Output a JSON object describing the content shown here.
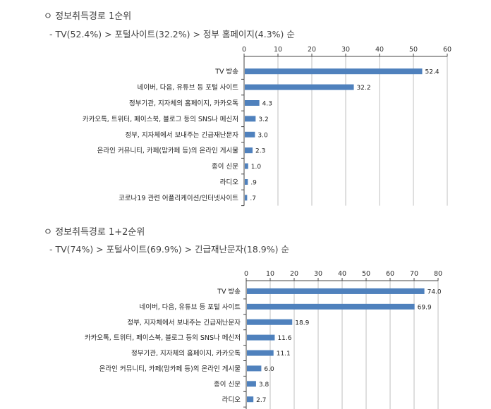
{
  "section1": {
    "heading": "ㅇ 정보취득경로 1순위",
    "subheading": "- TV(52.4%) > 포털사이트(32.2%) > 정부 홈페이지(4.3%) 순"
  },
  "section2": {
    "heading": "ㅇ 정보취득경로 1+2순위",
    "subheading": "- TV(74%) > 포털사이트(69.9%) > 긴급재난문자(18.9%) 순"
  },
  "colors": {
    "bar": "#4f81bd",
    "axis": "#444444",
    "grid": "#bfbfbf"
  },
  "chart_data": [
    {
      "type": "bar",
      "orientation": "horizontal",
      "categories": [
        "TV 방송",
        "네이버, 다음, 유튜브 등 포털 사이트",
        "정부기관, 지자체의 홈페이지, 카카오톡",
        "카카오톡, 트위터, 페이스북, 블로그 등의 SNS나 메신저",
        "정부, 지자체에서 보내주는 긴급재난문자",
        "온라인 커뮤니티, 카페(맘카페 등)의 온라인 게시물",
        "종이 신문",
        "라디오",
        "코로나19 관련 어플리케이션/인터넷사이트"
      ],
      "values": [
        52.4,
        32.2,
        4.3,
        3.2,
        3.0,
        2.3,
        1.0,
        0.9,
        0.7
      ],
      "value_labels": [
        "52.4",
        "32.2",
        "4.3",
        "3.2",
        "3.0",
        "2.3",
        "1.0",
        ".9",
        ".7"
      ],
      "xlim": [
        0,
        60
      ],
      "ticks": [
        0,
        10,
        20,
        30,
        40,
        50,
        60
      ],
      "grid": true,
      "legend": "none"
    },
    {
      "type": "bar",
      "orientation": "horizontal",
      "categories": [
        "TV 방송",
        "네이버, 다음, 유튜브 등 포털 사이트",
        "정부, 지자체에서 보내주는 긴급재난문자",
        "카카오톡, 트위터, 페이스북, 블로그 등의 SNS나 메신저",
        "정부기관, 지자체의 홈페이지, 카카오톡",
        "온라인 커뮤니티, 카페(맘카페 등)의 온라인 게시물",
        "종이 신문",
        "라디오"
      ],
      "values": [
        74.0,
        69.9,
        18.9,
        11.6,
        11.1,
        6.0,
        3.8,
        2.7
      ],
      "value_labels": [
        "74.0",
        "69.9",
        "18.9",
        "11.6",
        "11.1",
        "6.0",
        "3.8",
        "2.7"
      ],
      "xlim": [
        0,
        80
      ],
      "ticks": [
        0,
        10,
        20,
        30,
        40,
        50,
        60,
        70,
        80
      ],
      "grid": true,
      "legend": "none"
    }
  ]
}
